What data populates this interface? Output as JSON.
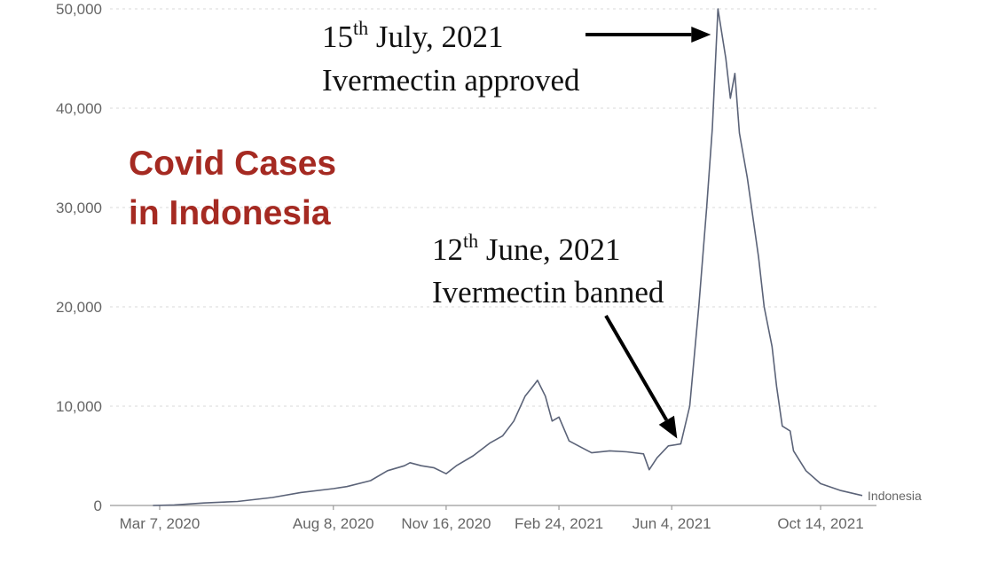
{
  "chart_data": {
    "type": "line",
    "title_line1": "Covid Cases",
    "title_line2": "in Indonesia",
    "title_color": "#a52a22",
    "line_color": "#5b6378",
    "xlabel": "",
    "ylabel": "",
    "ylim": [
      0,
      50000
    ],
    "yticks": [
      0,
      10000,
      20000,
      30000,
      40000,
      50000
    ],
    "ytick_labels": [
      "0",
      "10,000",
      "20,000",
      "30,000",
      "40,000",
      "50,000"
    ],
    "xlim": [
      "2020-03-01",
      "2021-12-10"
    ],
    "xticks": [
      "2020-03-07",
      "2020-08-08",
      "2020-11-16",
      "2021-02-24",
      "2021-06-04",
      "2021-10-14"
    ],
    "xtick_labels": [
      "Mar 7, 2020",
      "Aug 8, 2020",
      "Nov 16, 2020",
      "Feb 24, 2021",
      "Jun 4, 2021",
      "Oct 14, 2021"
    ],
    "grid": true,
    "series": [
      {
        "name": "Indonesia",
        "points": [
          [
            "2020-03-01",
            0
          ],
          [
            "2020-03-20",
            50
          ],
          [
            "2020-04-15",
            250
          ],
          [
            "2020-05-15",
            400
          ],
          [
            "2020-06-15",
            800
          ],
          [
            "2020-07-10",
            1300
          ],
          [
            "2020-08-08",
            1700
          ],
          [
            "2020-08-20",
            1900
          ],
          [
            "2020-09-10",
            2500
          ],
          [
            "2020-09-25",
            3500
          ],
          [
            "2020-10-10",
            4000
          ],
          [
            "2020-10-15",
            4300
          ],
          [
            "2020-10-25",
            4000
          ],
          [
            "2020-11-05",
            3800
          ],
          [
            "2020-11-16",
            3200
          ],
          [
            "2020-11-25",
            4000
          ],
          [
            "2020-12-10",
            5000
          ],
          [
            "2020-12-25",
            6300
          ],
          [
            "2021-01-05",
            7000
          ],
          [
            "2021-01-15",
            8500
          ],
          [
            "2021-01-25",
            11000
          ],
          [
            "2021-02-01",
            12000
          ],
          [
            "2021-02-05",
            12600
          ],
          [
            "2021-02-12",
            11000
          ],
          [
            "2021-02-18",
            8500
          ],
          [
            "2021-02-24",
            8900
          ],
          [
            "2021-03-05",
            6500
          ],
          [
            "2021-03-15",
            5900
          ],
          [
            "2021-03-25",
            5300
          ],
          [
            "2021-04-10",
            5500
          ],
          [
            "2021-04-25",
            5400
          ],
          [
            "2021-05-10",
            5200
          ],
          [
            "2021-05-15",
            3600
          ],
          [
            "2021-05-22",
            4800
          ],
          [
            "2021-06-01",
            6000
          ],
          [
            "2021-06-12",
            6200
          ],
          [
            "2021-06-20",
            10000
          ],
          [
            "2021-06-28",
            20000
          ],
          [
            "2021-07-05",
            30000
          ],
          [
            "2021-07-10",
            38000
          ],
          [
            "2021-07-15",
            50000
          ],
          [
            "2021-07-22",
            45000
          ],
          [
            "2021-07-26",
            41000
          ],
          [
            "2021-07-30",
            43500
          ],
          [
            "2021-08-03",
            37500
          ],
          [
            "2021-08-10",
            33000
          ],
          [
            "2021-08-20",
            25000
          ],
          [
            "2021-08-25",
            20000
          ],
          [
            "2021-09-01",
            16000
          ],
          [
            "2021-09-05",
            12000
          ],
          [
            "2021-09-10",
            8000
          ],
          [
            "2021-09-17",
            7500
          ],
          [
            "2021-09-20",
            5500
          ],
          [
            "2021-10-01",
            3500
          ],
          [
            "2021-10-14",
            2200
          ],
          [
            "2021-11-01",
            1500
          ],
          [
            "2021-11-20",
            1000
          ]
        ]
      }
    ],
    "annotations": [
      {
        "day": "15",
        "sup": "th",
        "rest": " July, 2021",
        "line2": "Ivermectin approved",
        "target": [
          "2021-07-15",
          50000
        ]
      },
      {
        "day": "12",
        "sup": "th",
        "rest": " June, 2021",
        "line2": "Ivermectin banned",
        "target": [
          "2021-06-12",
          6200
        ]
      }
    ]
  }
}
